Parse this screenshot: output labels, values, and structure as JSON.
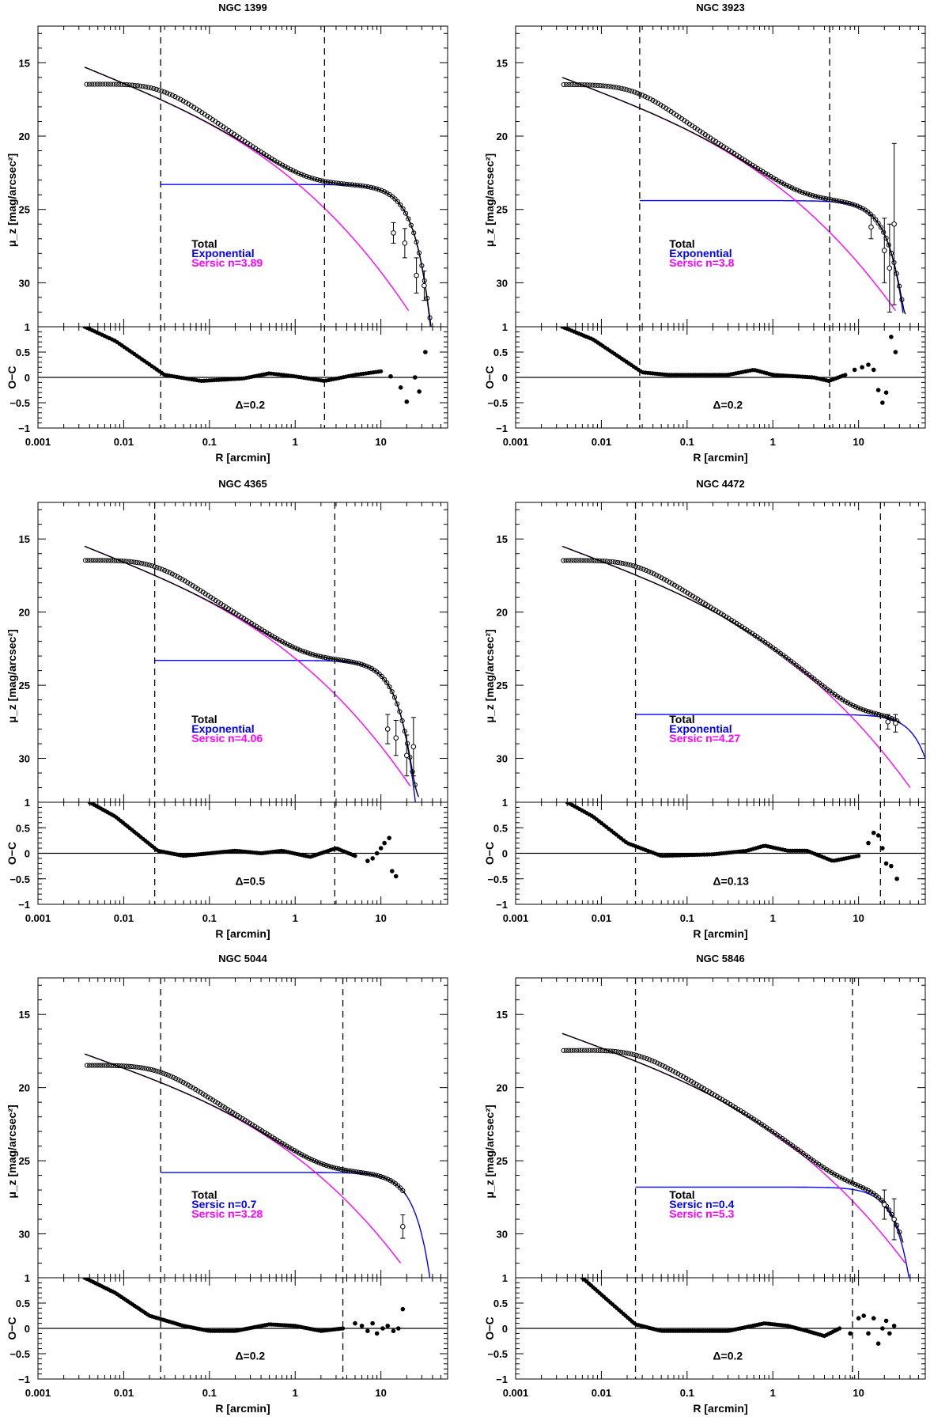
{
  "figure": {
    "x_label": "R [arcmin]",
    "y_label_top": "μ_z [mag/arcsec²]",
    "y_label_bottom": "O−C",
    "x_ticks": [
      "0.001",
      "0.01",
      "0.1",
      "1",
      "10"
    ],
    "y_ticks_top": [
      "15",
      "20",
      "25",
      "30"
    ],
    "y_ticks_bottom": [
      "1",
      "0.5",
      "0",
      "−0.5",
      "−1"
    ],
    "colors": {
      "total": "#000000",
      "exponential": "#0000ff",
      "sersic": "#ff00ff",
      "data": "#000000"
    }
  },
  "chart_data": [
    {
      "type": "scatter",
      "title": "NGC 1399",
      "xscale": "log",
      "xlim": [
        0.001,
        60
      ],
      "ylim_top": [
        33.0,
        12.5
      ],
      "ylim_bottom": [
        -1,
        1
      ],
      "inner_cut": 0.027,
      "outer_cut": 2.2,
      "data_center_mu": 16.5,
      "data_min_r": 0.0018,
      "last_mu": 31.8,
      "last_r": 40,
      "sersic": {
        "label": "Sersic n=3.89",
        "mu_start": 15.3,
        "mu_end": 31.9,
        "r_end": 21,
        "r_mid": 2.6
      },
      "second": {
        "label": "Exponential",
        "mu0": 23.3,
        "mu_end": 31.9,
        "r_end": 36,
        "r_knee": 8
      },
      "legend": [
        "Total",
        "Exponential",
        "Sersic n=3.89"
      ],
      "delta_label": "Δ=0.2",
      "residual_trend": [
        [
          0.0035,
          1.0
        ],
        [
          0.008,
          0.72
        ],
        [
          0.03,
          0.05
        ],
        [
          0.08,
          -0.07
        ],
        [
          0.25,
          -0.02
        ],
        [
          0.5,
          0.08
        ],
        [
          1,
          0.02
        ],
        [
          2.2,
          -0.07
        ],
        [
          5,
          0.05
        ],
        [
          10,
          0.12
        ]
      ],
      "residual_scatter": [
        [
          13,
          0.02
        ],
        [
          17,
          -0.2
        ],
        [
          20,
          -0.48
        ],
        [
          25,
          0.0
        ],
        [
          28,
          -0.28
        ],
        [
          33,
          0.5
        ]
      ],
      "error_bars": [
        [
          14,
          26.6,
          0.7
        ],
        [
          19,
          27.3,
          1.0
        ],
        [
          26,
          29.5,
          1.2
        ],
        [
          32,
          30.2,
          1.0
        ]
      ]
    },
    {
      "type": "scatter",
      "title": "NGC 3923",
      "xscale": "log",
      "xlim": [
        0.001,
        60
      ],
      "ylim_top": [
        33.0,
        12.5
      ],
      "ylim_bottom": [
        -1,
        1
      ],
      "inner_cut": 0.028,
      "outer_cut": 4.6,
      "data_center_mu": 16.5,
      "data_min_r": 0.0018,
      "last_mu": 30.5,
      "last_r": 32,
      "sersic": {
        "label": "Sersic n=3.8",
        "mu_start": 16.0,
        "mu_end": 31.9,
        "r_end": 27,
        "r_mid": 5.4
      },
      "second": {
        "label": "Exponential",
        "mu0": 24.4,
        "mu_end": 30.5,
        "r_end": 30,
        "r_knee": 10
      },
      "legend": [
        "Total",
        "Exponential",
        "Sersic n=3.8"
      ],
      "delta_label": "Δ=0.2",
      "residual_trend": [
        [
          0.0035,
          1.0
        ],
        [
          0.008,
          0.75
        ],
        [
          0.03,
          0.1
        ],
        [
          0.06,
          0.05
        ],
        [
          0.3,
          0.05
        ],
        [
          0.6,
          0.15
        ],
        [
          1,
          0.05
        ],
        [
          3,
          0.0
        ],
        [
          4.5,
          -0.07
        ],
        [
          7,
          0.05
        ]
      ],
      "residual_scatter": [
        [
          9,
          0.15
        ],
        [
          11,
          0.2
        ],
        [
          13,
          0.25
        ],
        [
          15,
          0.15
        ],
        [
          17,
          -0.25
        ],
        [
          19,
          -0.5
        ],
        [
          21,
          -0.3
        ],
        [
          24,
          0.8
        ],
        [
          27,
          0.5
        ]
      ],
      "error_bars": [
        [
          14,
          26.2,
          0.8
        ],
        [
          20,
          27.8,
          2.2
        ],
        [
          23,
          29.0,
          3.0
        ],
        [
          26,
          26.0,
          5.5
        ]
      ]
    },
    {
      "type": "scatter",
      "title": "NGC 4365",
      "xscale": "log",
      "xlim": [
        0.001,
        60
      ],
      "ylim_top": [
        33.0,
        12.5
      ],
      "ylim_bottom": [
        -1,
        1
      ],
      "inner_cut": 0.023,
      "outer_cut": 2.9,
      "data_center_mu": 16.5,
      "data_min_r": 0.0018,
      "last_mu": 31.5,
      "last_r": 25,
      "sersic": {
        "label": "Sersic n=4.06",
        "mu_start": 15.5,
        "mu_end": 31.9,
        "r_end": 22,
        "r_mid": 3.2
      },
      "second": {
        "label": "Exponential",
        "mu0": 23.3,
        "mu_end": 31.9,
        "r_end": 24,
        "r_knee": 7
      },
      "legend": [
        "Total",
        "Exponential",
        "Sersic n=4.06"
      ],
      "delta_label": "Δ=0.5",
      "residual_trend": [
        [
          0.004,
          1.0
        ],
        [
          0.008,
          0.72
        ],
        [
          0.025,
          0.05
        ],
        [
          0.05,
          -0.05
        ],
        [
          0.2,
          0.05
        ],
        [
          0.4,
          0.0
        ],
        [
          0.7,
          0.05
        ],
        [
          1.5,
          -0.07
        ],
        [
          3,
          0.1
        ],
        [
          5,
          -0.05
        ]
      ],
      "residual_scatter": [
        [
          7,
          -0.15
        ],
        [
          8,
          -0.1
        ],
        [
          9,
          0.0
        ],
        [
          10,
          0.1
        ],
        [
          11,
          0.2
        ],
        [
          12.5,
          0.3
        ],
        [
          13.5,
          -0.35
        ],
        [
          15,
          -0.45
        ]
      ],
      "error_bars": [
        [
          12,
          28.0,
          1.0
        ],
        [
          15,
          28.6,
          1.2
        ],
        [
          20,
          29.8,
          1.4
        ],
        [
          24,
          29.2,
          2.0
        ]
      ]
    },
    {
      "type": "scatter",
      "title": "NGC 4472",
      "xscale": "log",
      "xlim": [
        0.001,
        60
      ],
      "ylim_top": [
        33.0,
        12.5
      ],
      "ylim_bottom": [
        -1,
        1
      ],
      "inner_cut": 0.025,
      "outer_cut": 18,
      "data_center_mu": 16.5,
      "data_min_r": 0.0018,
      "last_mu": 27.6,
      "last_r": 28,
      "sersic": {
        "label": "Sersic n=4.27",
        "mu_start": 15.5,
        "mu_end": 32.0,
        "r_end": 40,
        "r_mid": 15
      },
      "second": {
        "label": "Exponential",
        "mu0": 27.0,
        "mu_end": 30.0,
        "r_end": 60,
        "r_knee": 20
      },
      "legend": [
        "Total",
        "Exponential",
        "Sersic n=4.27"
      ],
      "delta_label": "Δ=0.13",
      "residual_trend": [
        [
          0.004,
          1.0
        ],
        [
          0.008,
          0.72
        ],
        [
          0.02,
          0.2
        ],
        [
          0.05,
          -0.05
        ],
        [
          0.2,
          -0.02
        ],
        [
          0.5,
          0.05
        ],
        [
          0.8,
          0.15
        ],
        [
          1.5,
          0.05
        ],
        [
          2.5,
          0.05
        ],
        [
          5,
          -0.15
        ],
        [
          10,
          -0.05
        ]
      ],
      "residual_scatter": [
        [
          13,
          0.2
        ],
        [
          15,
          0.4
        ],
        [
          17,
          0.35
        ],
        [
          19,
          0.1
        ],
        [
          21,
          -0.2
        ],
        [
          24,
          -0.25
        ],
        [
          28,
          -0.5
        ]
      ],
      "error_bars": [
        [
          22,
          27.5,
          0.5
        ],
        [
          27,
          27.6,
          0.6
        ]
      ]
    },
    {
      "type": "scatter",
      "title": "NGC 5044",
      "xscale": "log",
      "xlim": [
        0.001,
        60
      ],
      "ylim_top": [
        33.0,
        12.5
      ],
      "ylim_bottom": [
        -1,
        1
      ],
      "inner_cut": 0.027,
      "outer_cut": 3.6,
      "data_center_mu": 18.5,
      "data_min_r": 0.0018,
      "last_mu": 29.0,
      "last_r": 18,
      "sersic": {
        "label": "Sersic n=3.28",
        "mu_start": 17.7,
        "mu_end": 32.0,
        "r_end": 17,
        "r_mid": 3.5
      },
      "second": {
        "label": "Sersic n=0.7",
        "mu0": 25.8,
        "mu_end": 32.0,
        "r_end": 35,
        "r_knee": 12
      },
      "legend": [
        "Total",
        "Sersic n=0.7",
        "Sersic n=3.28"
      ],
      "delta_label": "Δ=0.2",
      "residual_trend": [
        [
          0.0035,
          1.0
        ],
        [
          0.008,
          0.7
        ],
        [
          0.02,
          0.25
        ],
        [
          0.05,
          0.05
        ],
        [
          0.1,
          -0.05
        ],
        [
          0.2,
          -0.05
        ],
        [
          0.5,
          0.08
        ],
        [
          1,
          0.05
        ],
        [
          2,
          -0.05
        ],
        [
          3.6,
          0.0
        ]
      ],
      "residual_scatter": [
        [
          5,
          0.1
        ],
        [
          6,
          0.05
        ],
        [
          7,
          -0.05
        ],
        [
          8,
          0.1
        ],
        [
          9,
          -0.1
        ],
        [
          10.5,
          0.0
        ],
        [
          12,
          0.05
        ],
        [
          14,
          -0.05
        ],
        [
          16,
          0.0
        ],
        [
          18,
          0.38
        ]
      ],
      "error_bars": [
        [
          18,
          29.5,
          0.8
        ]
      ]
    },
    {
      "type": "scatter",
      "title": "NGC 5846",
      "xscale": "log",
      "xlim": [
        0.001,
        60
      ],
      "ylim_top": [
        33.0,
        12.5
      ],
      "ylim_bottom": [
        -1,
        1
      ],
      "inner_cut": 0.025,
      "outer_cut": 8.5,
      "data_center_mu": 17.5,
      "data_min_r": 0.0018,
      "last_mu": 30.5,
      "last_r": 30,
      "sersic": {
        "label": "Sersic n=5.3",
        "mu_start": 16.3,
        "mu_end": 32.0,
        "r_end": 35,
        "r_mid": 9
      },
      "second": {
        "label": "Sersic n=0.4",
        "mu0": 26.8,
        "mu_end": 32.0,
        "r_end": 36,
        "r_knee": 20
      },
      "legend": [
        "Total",
        "Sersic n=0.4",
        "Sersic n=5.3"
      ],
      "delta_label": "Δ=0.2",
      "residual_trend": [
        [
          0.006,
          1.0
        ],
        [
          0.012,
          0.55
        ],
        [
          0.025,
          0.08
        ],
        [
          0.05,
          -0.05
        ],
        [
          0.3,
          -0.05
        ],
        [
          0.8,
          0.1
        ],
        [
          1.5,
          0.05
        ],
        [
          2.5,
          -0.05
        ],
        [
          4,
          -0.15
        ],
        [
          6,
          0.0
        ]
      ],
      "residual_scatter": [
        [
          8,
          -0.1
        ],
        [
          10,
          0.2
        ],
        [
          11.5,
          0.25
        ],
        [
          13,
          -0.1
        ],
        [
          15,
          0.2
        ],
        [
          17,
          -0.3
        ],
        [
          19,
          0.0
        ],
        [
          21,
          0.15
        ],
        [
          23,
          -0.1
        ],
        [
          26,
          0.05
        ]
      ],
      "error_bars": [
        [
          20,
          28.0,
          1.0
        ],
        [
          26,
          29.0,
          1.4
        ]
      ]
    }
  ]
}
